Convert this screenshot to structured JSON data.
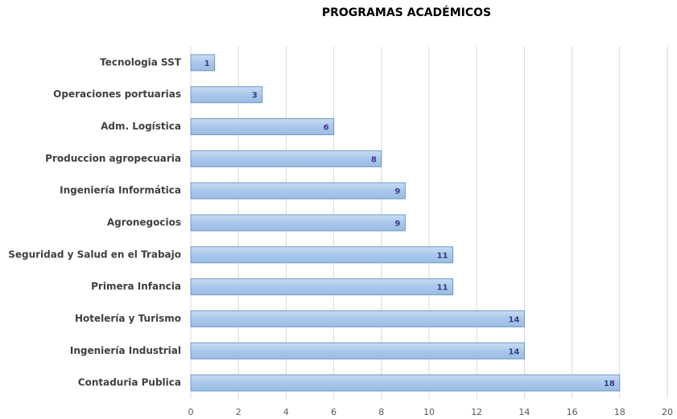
{
  "chart_data": {
    "type": "bar",
    "orientation": "horizontal",
    "title": "PROGRAMAS ACADÉMICOS",
    "categories": [
      "Tecnologia SST",
      "Operaciones portuarias",
      "Adm. Logística",
      "Produccion agropecuaria",
      "Ingeniería Informática",
      "Agronegocios",
      "Seguridad y Salud en el Trabajo",
      "Primera Infancia",
      "Hotelería y Turismo",
      "Ingeniería Industrial",
      "Contaduria Publica"
    ],
    "values": [
      1,
      3,
      6,
      8,
      9,
      9,
      11,
      11,
      14,
      14,
      18
    ],
    "color": "#a9c8ea",
    "xlim": [
      0,
      20
    ],
    "xticks": [
      0,
      2,
      4,
      6,
      8,
      10,
      12,
      14,
      16,
      18,
      20
    ],
    "grid": true
  }
}
